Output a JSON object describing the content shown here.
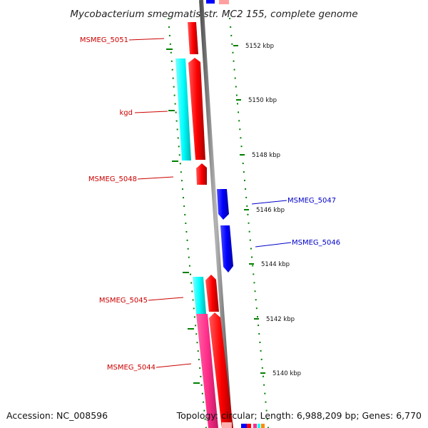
{
  "title": "Mycobacterium smegmatis str. MC2 155, complete genome",
  "footer": {
    "accession": "Accession: NC_008596",
    "summary": "Topology: circular; Length: 6,988,209 bp; Genes: 6,770"
  },
  "colors": {
    "forward_cds": "#ff0000",
    "reverse_cds": "#0000ff",
    "rna_cyan": "#00ffff",
    "pink_feature": "#ff2d8a",
    "tick_green": "#008000",
    "backbone_gray": "#8a8a8a",
    "forward_label": "#cc0000",
    "reverse_label": "#0000cc"
  },
  "scale_ticks": [
    {
      "label": "5152 kbp"
    },
    {
      "label": "5150 kbp"
    },
    {
      "label": "5148 kbp"
    },
    {
      "label": "5146 kbp"
    },
    {
      "label": "5144 kbp"
    },
    {
      "label": "5142 kbp"
    },
    {
      "label": "5140 kbp"
    }
  ],
  "gene_labels": [
    {
      "name": "MSMEG_5051",
      "strand": "forward"
    },
    {
      "name": "kgd",
      "strand": "forward"
    },
    {
      "name": "MSMEG_5048",
      "strand": "forward"
    },
    {
      "name": "MSMEG_5047",
      "strand": "reverse"
    },
    {
      "name": "MSMEG_5046",
      "strand": "reverse"
    },
    {
      "name": "MSMEG_5045",
      "strand": "forward"
    },
    {
      "name": "MSMEG_5044",
      "strand": "forward"
    }
  ]
}
